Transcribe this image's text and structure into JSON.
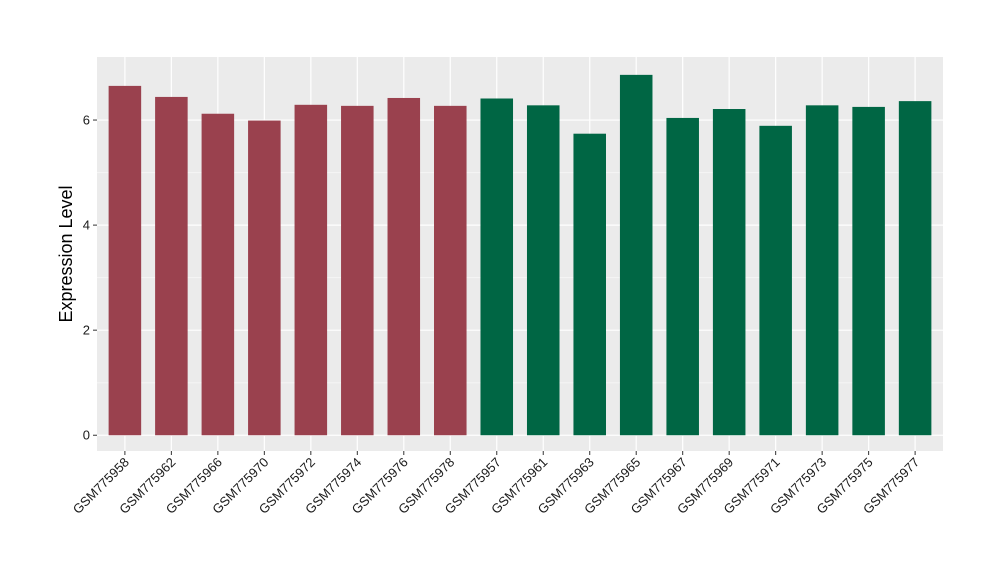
{
  "chart_data": {
    "type": "bar",
    "title": "",
    "xlabel": "",
    "ylabel": "Expression Level",
    "ylim": [
      -0.3,
      7.2
    ],
    "yticks": [
      0,
      2,
      4,
      6
    ],
    "grid": true,
    "background": "#EBEBEB",
    "categories": [
      "GSM775958",
      "GSM775962",
      "GSM775966",
      "GSM775970",
      "GSM775972",
      "GSM775974",
      "GSM775976",
      "GSM775978",
      "GSM775957",
      "GSM775961",
      "GSM775963",
      "GSM775965",
      "GSM775967",
      "GSM775969",
      "GSM775971",
      "GSM775973",
      "GSM775975",
      "GSM775977"
    ],
    "values": [
      6.65,
      6.44,
      6.12,
      5.99,
      6.29,
      6.27,
      6.42,
      6.27,
      6.41,
      6.28,
      5.74,
      6.86,
      6.04,
      6.21,
      5.89,
      6.28,
      6.25,
      6.36
    ],
    "bar_colors": [
      "#9A414E",
      "#9A414E",
      "#9A414E",
      "#9A414E",
      "#9A414E",
      "#9A414E",
      "#9A414E",
      "#9A414E",
      "#006644",
      "#006644",
      "#006644",
      "#006644",
      "#006644",
      "#006644",
      "#006644",
      "#006644",
      "#006644",
      "#006644"
    ]
  }
}
